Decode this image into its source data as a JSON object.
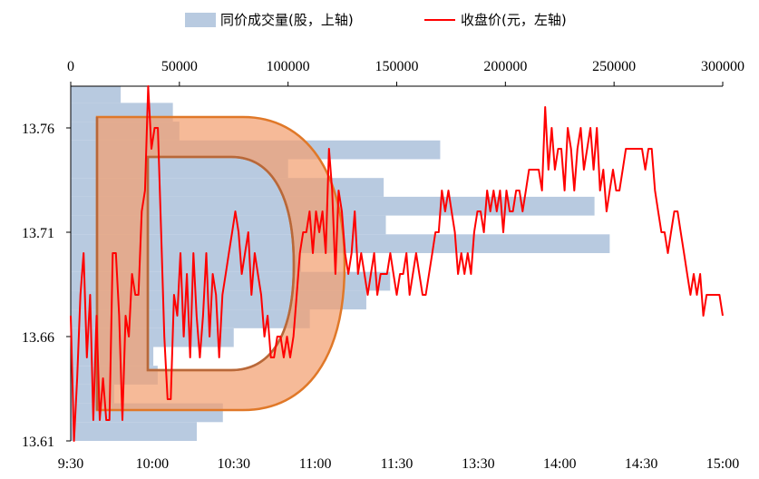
{
  "chart_data": {
    "type": "line+horizontal-bar",
    "legend": {
      "volume_label": "同价成交量(股，上轴)",
      "price_label": "收盘价(元，左轴)",
      "placement": "top-center"
    },
    "colors": {
      "volume": "#b8cae0",
      "price": "#ff0000",
      "shape_fill": "#f2a070",
      "shape_stroke": "#e07828",
      "inner_stroke": "#b8683a"
    },
    "x_time_ticks": [
      "9:30",
      "10:00",
      "10:30",
      "11:00",
      "11:30",
      "13:30",
      "14:00",
      "14:30",
      "15:00"
    ],
    "top_axis": {
      "ticks": [
        "0",
        "50000",
        "100000",
        "150000",
        "200000",
        "250000",
        "300000"
      ],
      "range": [
        0,
        300000
      ]
    },
    "left_axis": {
      "ticks": [
        "13.61",
        "13.66",
        "13.71",
        "13.76"
      ],
      "range": [
        13.61,
        13.78
      ]
    },
    "volume_profile": [
      {
        "price_low": 13.61,
        "price_high": 13.619,
        "volume": 58000
      },
      {
        "price_low": 13.619,
        "price_high": 13.628,
        "volume": 70000
      },
      {
        "price_low": 13.628,
        "price_high": 13.637,
        "volume": 20000
      },
      {
        "price_low": 13.637,
        "price_high": 13.646,
        "volume": 40000
      },
      {
        "price_low": 13.646,
        "price_high": 13.655,
        "volume": 38000
      },
      {
        "price_low": 13.655,
        "price_high": 13.664,
        "volume": 75000
      },
      {
        "price_low": 13.664,
        "price_high": 13.673,
        "volume": 110000
      },
      {
        "price_low": 13.673,
        "price_high": 13.682,
        "volume": 136000
      },
      {
        "price_low": 13.682,
        "price_high": 13.691,
        "volume": 147000
      },
      {
        "price_low": 13.691,
        "price_high": 13.7,
        "volume": 106000
      },
      {
        "price_low": 13.7,
        "price_high": 13.709,
        "volume": 248000
      },
      {
        "price_low": 13.709,
        "price_high": 13.718,
        "volume": 145000
      },
      {
        "price_low": 13.718,
        "price_high": 13.727,
        "volume": 241000
      },
      {
        "price_low": 13.727,
        "price_high": 13.736,
        "volume": 144000
      },
      {
        "price_low": 13.736,
        "price_high": 13.745,
        "volume": 100000
      },
      {
        "price_low": 13.745,
        "price_high": 13.754,
        "volume": 170000
      },
      {
        "price_low": 13.754,
        "price_high": 13.763,
        "volume": 50000
      },
      {
        "price_low": 13.763,
        "price_high": 13.772,
        "volume": 47000
      },
      {
        "price_low": 13.772,
        "price_high": 13.78,
        "volume": 23000
      }
    ],
    "price_series": [
      13.67,
      13.61,
      13.64,
      13.68,
      13.7,
      13.65,
      13.68,
      13.62,
      13.67,
      13.62,
      13.64,
      13.62,
      13.62,
      13.7,
      13.7,
      13.67,
      13.62,
      13.67,
      13.66,
      13.69,
      13.68,
      13.68,
      13.72,
      13.73,
      13.78,
      13.75,
      13.76,
      13.76,
      13.71,
      13.66,
      13.63,
      13.63,
      13.68,
      13.67,
      13.7,
      13.66,
      13.69,
      13.65,
      13.7,
      13.67,
      13.65,
      13.67,
      13.7,
      13.66,
      13.69,
      13.68,
      13.65,
      13.68,
      13.69,
      13.7,
      13.71,
      13.72,
      13.71,
      13.69,
      13.7,
      13.71,
      13.68,
      13.7,
      13.69,
      13.68,
      13.66,
      13.67,
      13.65,
      13.65,
      13.66,
      13.66,
      13.65,
      13.66,
      13.65,
      13.66,
      13.68,
      13.7,
      13.71,
      13.71,
      13.72,
      13.7,
      13.72,
      13.71,
      13.72,
      13.7,
      13.75,
      13.73,
      13.69,
      13.73,
      13.72,
      13.7,
      13.69,
      13.7,
      13.72,
      13.69,
      13.7,
      13.69,
      13.68,
      13.69,
      13.7,
      13.68,
      13.69,
      13.69,
      13.69,
      13.7,
      13.69,
      13.68,
      13.69,
      13.69,
      13.7,
      13.68,
      13.69,
      13.7,
      13.69,
      13.68,
      13.68,
      13.69,
      13.7,
      13.71,
      13.71,
      13.73,
      13.72,
      13.73,
      13.72,
      13.71,
      13.69,
      13.7,
      13.69,
      13.7,
      13.69,
      13.71,
      13.72,
      13.72,
      13.71,
      13.73,
      13.72,
      13.73,
      13.72,
      13.73,
      13.71,
      13.73,
      13.72,
      13.72,
      13.73,
      13.73,
      13.72,
      13.73,
      13.74,
      13.74,
      13.74,
      13.74,
      13.73,
      13.77,
      13.74,
      13.76,
      13.74,
      13.75,
      13.75,
      13.73,
      13.76,
      13.75,
      13.73,
      13.75,
      13.76,
      13.74,
      13.75,
      13.76,
      13.74,
      13.76,
      13.73,
      13.74,
      13.72,
      13.73,
      13.74,
      13.73,
      13.73,
      13.74,
      13.75,
      13.75,
      13.75,
      13.75,
      13.75,
      13.75,
      13.74,
      13.75,
      13.75,
      13.73,
      13.72,
      13.71,
      13.71,
      13.7,
      13.71,
      13.72,
      13.72,
      13.71,
      13.7,
      13.69,
      13.68,
      13.69,
      13.68,
      13.69,
      13.67,
      13.68,
      13.68,
      13.68,
      13.68,
      13.68,
      13.67
    ]
  }
}
